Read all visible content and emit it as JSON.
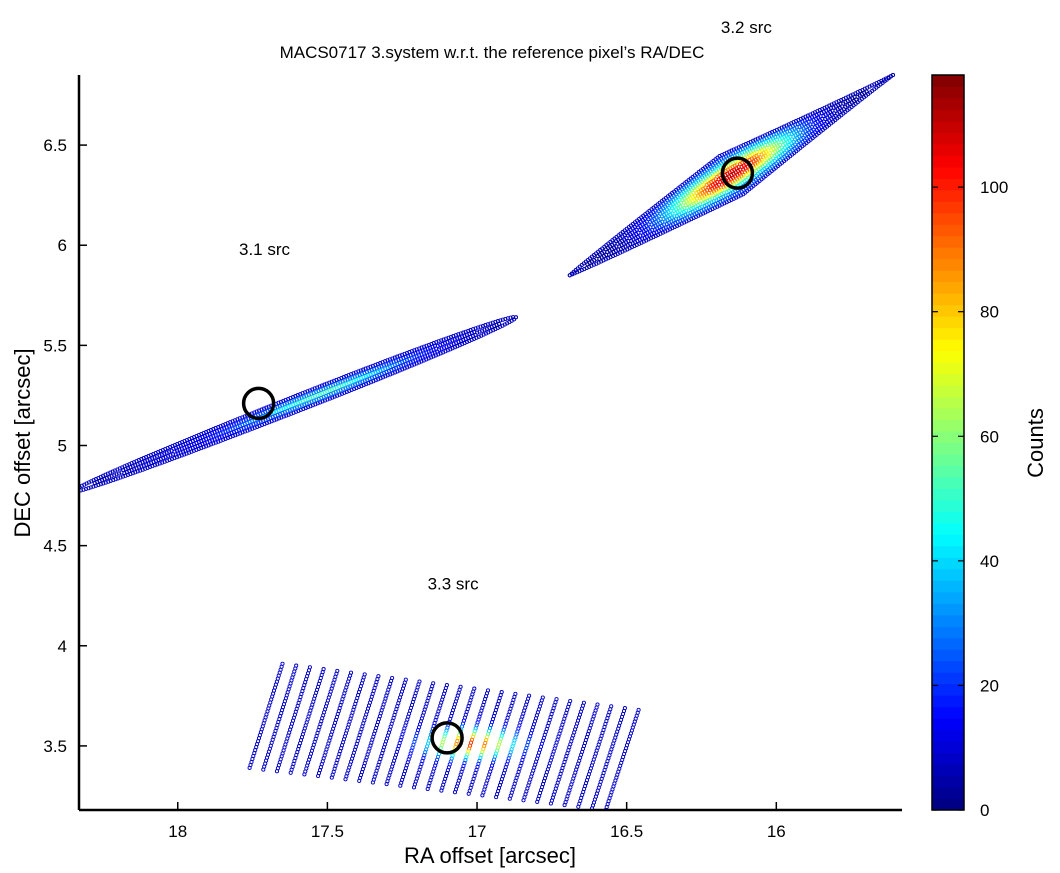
{
  "chart_data": {
    "type": "scatter",
    "title": "MACS0717  3.system w.r.t. the reference pixel’s RA/DEC",
    "xlabel": "RA offset [arcsec]",
    "ylabel": "DEC offset [arcsec]",
    "xlim": [
      18.33,
      15.58
    ],
    "ylim": [
      3.18,
      6.85
    ],
    "x_reversed": true,
    "xticks": [
      18,
      17.5,
      17,
      16.5,
      16
    ],
    "xtick_labels": [
      "18",
      "17.5",
      "17",
      "16.5",
      "16"
    ],
    "yticks": [
      3.5,
      4,
      4.5,
      5,
      5.5,
      6,
      6.5
    ],
    "ytick_labels": [
      "3.5",
      "4",
      "4.5",
      "5",
      "5.5",
      "6",
      "6.5"
    ],
    "grid": false,
    "colorbar": {
      "label": "Counts",
      "range": [
        0,
        118
      ],
      "ticks": [
        0,
        20,
        40,
        60,
        80,
        100
      ],
      "tick_labels": [
        "0",
        "20",
        "40",
        "60",
        "80",
        "100"
      ],
      "colormap": "jet"
    },
    "annotations": [
      {
        "text": "3.1 src",
        "x": 17.71,
        "y": 5.95
      },
      {
        "text": "3.2 src",
        "x": 16.1,
        "y": 7.06
      },
      {
        "text": "3.3 src",
        "x": 17.08,
        "y": 4.28
      }
    ],
    "series": [
      {
        "name": "3.1 src",
        "shape": "ellipse",
        "center": [
          17.5,
          5.21
        ],
        "end_a": [
          18.35,
          4.77
        ],
        "end_b": [
          16.87,
          5.64
        ],
        "half_width": 0.025,
        "peak_counts": 40,
        "marker": [
          17.73,
          5.21
        ]
      },
      {
        "name": "3.2 src",
        "shape": "lens",
        "center": [
          16.15,
          6.35
        ],
        "end_a": [
          16.69,
          5.85
        ],
        "end_b": [
          15.61,
          6.85
        ],
        "half_width": 0.075,
        "peak_counts": 100,
        "marker": [
          16.13,
          6.36
        ]
      },
      {
        "name": "3.3 src",
        "shape": "grid",
        "columns": 27,
        "first_column": {
          "x_top": 17.65,
          "y_top": 3.91,
          "x_bottom": 17.76,
          "y_bottom": 3.39
        },
        "last_column": {
          "x_top": 16.46,
          "y_top": 3.68,
          "x_bottom": 16.57,
          "y_bottom": 3.18
        },
        "peak": [
          17.02,
          3.51
        ],
        "peak_counts": 90,
        "marker": [
          17.1,
          3.54
        ]
      }
    ]
  }
}
